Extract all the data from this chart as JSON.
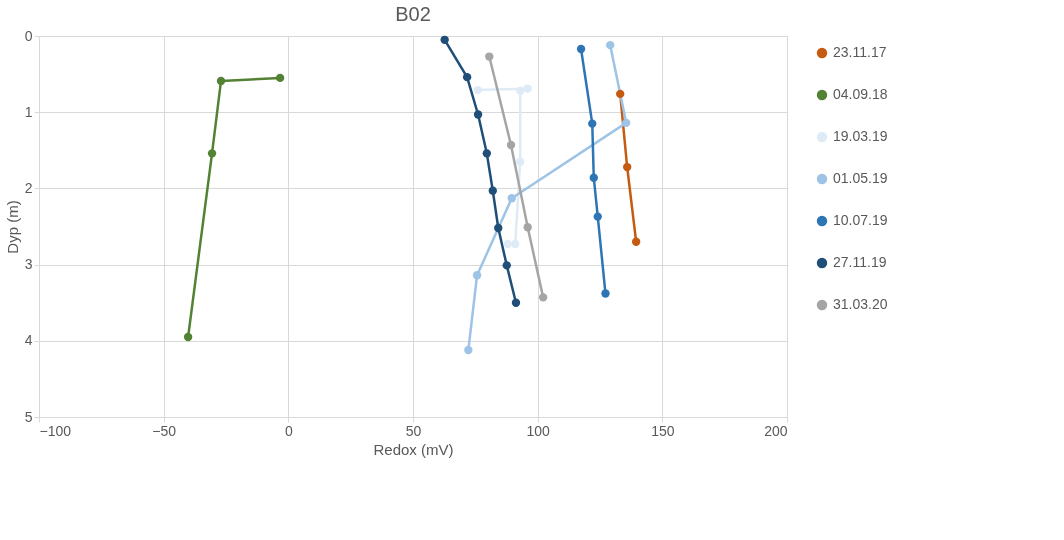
{
  "chart_data": {
    "type": "line",
    "title": "B02",
    "xlabel": "Redox (mV)",
    "ylabel": "Dyp (m)",
    "xlim": [
      -100,
      200
    ],
    "xticks": [
      -100,
      -50,
      0,
      50,
      100,
      150,
      200
    ],
    "ylim": [
      5,
      0
    ],
    "yticks": [
      0,
      1,
      2,
      3,
      4,
      5
    ],
    "grid": true,
    "legend": "right",
    "marker": "circle",
    "line_style": "solid",
    "series": [
      {
        "name": "23.11.17",
        "color": "#c55a11",
        "x": [
          133.1,
          135.9,
          139.5
        ],
        "values": [
          0.76,
          1.72,
          2.7
        ]
      },
      {
        "name": "04.09.18",
        "color": "#548235",
        "x": [
          -3.3,
          -27,
          -30.6,
          -40.2
        ],
        "values": [
          0.55,
          0.59,
          1.54,
          3.95
        ]
      },
      {
        "name": "19.03.19",
        "color": "#deebf7",
        "x": [
          76,
          96,
          93,
          93,
          91,
          88
        ],
        "values": [
          0.71,
          0.69,
          0.72,
          1.65,
          2.73,
          2.73
        ]
      },
      {
        "name": "01.05.19",
        "color": "#9dc3e6",
        "x": [
          129.1,
          135.5,
          89.6,
          75.7,
          72.2
        ],
        "values": [
          0.12,
          1.14,
          2.13,
          3.14,
          4.12
        ]
      },
      {
        "name": "10.07.19",
        "color": "#2e75b6",
        "x": [
          117.4,
          121.9,
          122.5,
          124.1,
          127.2
        ],
        "values": [
          0.17,
          1.15,
          1.86,
          2.37,
          3.38
        ]
      },
      {
        "name": "27.11.19",
        "color": "#1f4e79",
        "x": [
          62.7,
          71.7,
          76.1,
          79.6,
          82,
          84.2,
          87.6,
          91.3
        ],
        "values": [
          0.05,
          0.54,
          1.03,
          1.54,
          2.03,
          2.52,
          3.01,
          3.5
        ]
      },
      {
        "name": "31.03.20",
        "color": "#a5a5a5",
        "x": [
          80.6,
          89.3,
          96,
          102.2
        ],
        "values": [
          0.27,
          1.43,
          2.51,
          3.43
        ]
      }
    ]
  }
}
